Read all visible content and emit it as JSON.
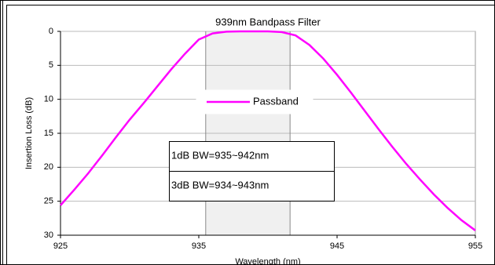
{
  "chart_data": {
    "type": "line",
    "title": "939nm Bandpass Filter",
    "x_label": "Wavelength (nm)",
    "y_label": "Insertion Loss (dB)",
    "x": [
      925,
      926,
      927,
      928,
      929,
      930,
      931,
      932,
      933,
      934,
      935,
      936,
      937,
      938,
      939,
      940,
      941,
      942,
      943,
      944,
      945,
      946,
      947,
      948,
      949,
      950,
      951,
      952,
      953,
      954,
      955
    ],
    "series": [
      {
        "name": "Passband",
        "color": "#ff00ff",
        "values": [
          25.6,
          23.3,
          20.9,
          18.3,
          15.6,
          13,
          10.6,
          8.1,
          5.6,
          3.3,
          1.2,
          0.3,
          0.05,
          0,
          0,
          0,
          0.1,
          0.6,
          2,
          4,
          6.4,
          9,
          11.7,
          14.4,
          17,
          19.5,
          21.8,
          24,
          26,
          27.8,
          29.3
        ]
      }
    ],
    "xlim": [
      925,
      955
    ],
    "xticks": [
      925,
      935,
      945,
      955
    ],
    "ylim": [
      0,
      30
    ],
    "yticks": [
      0,
      5,
      10,
      15,
      20,
      25,
      30
    ],
    "y_inverted": true,
    "grid": true,
    "shaded_region": [
      935.5,
      941.6
    ],
    "annotations": [
      "1dB BW=935~942nm",
      "3dB BW=934~943nm"
    ]
  }
}
